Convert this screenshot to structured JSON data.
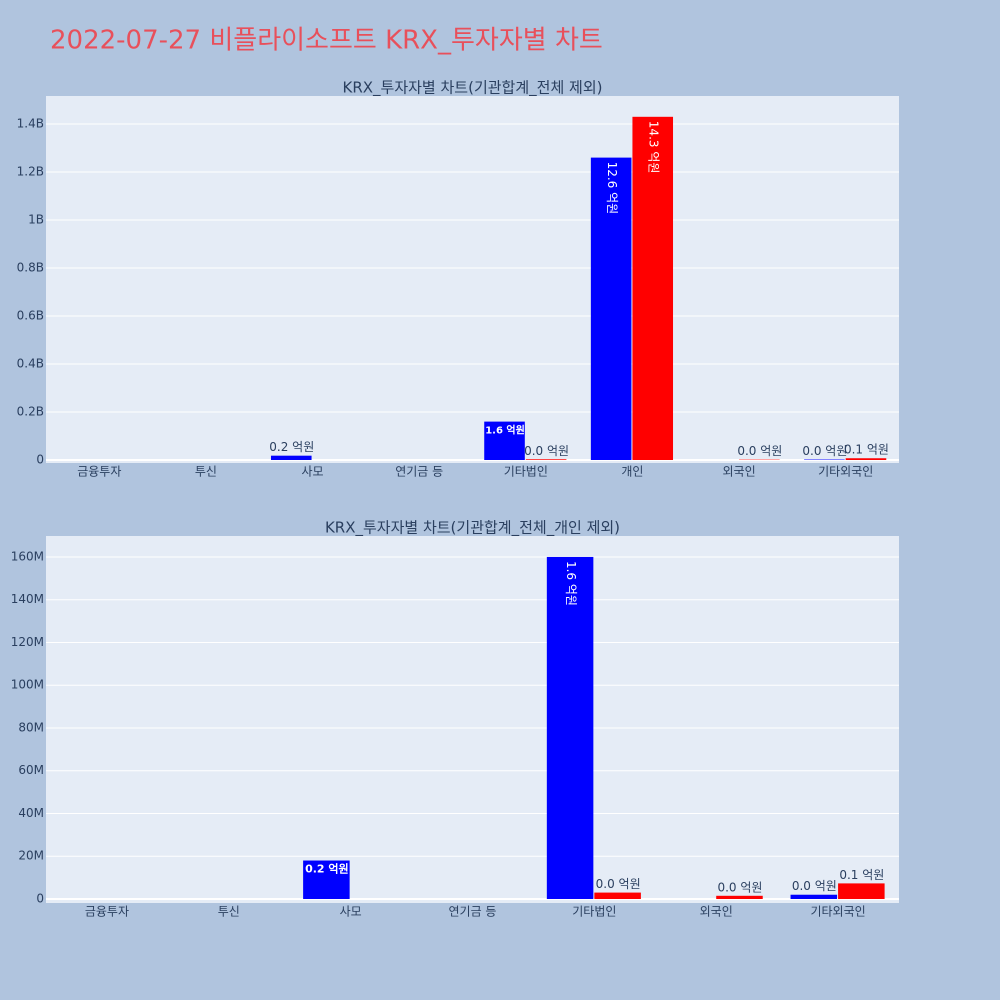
{
  "title": "2022-07-27 비플라이소프트 KRX_투자자별 차트",
  "chart_data": [
    {
      "type": "bar",
      "title": "KRX_투자자별 차트(기관합계_전체 제외)",
      "categories": [
        "금융투자",
        "투신",
        "사모",
        "연기금 등",
        "기타법인",
        "개인",
        "외국인",
        "기타외국인"
      ],
      "series": [
        {
          "color": "#0000ff",
          "values": [
            null,
            null,
            18000000,
            null,
            160000000,
            1260000000,
            null,
            2000000
          ],
          "value_labels": [
            null,
            null,
            "0.2 억원",
            null,
            "1.6 억원",
            "12.6 억원",
            null,
            "0.0 억원"
          ]
        },
        {
          "color": "#ff0000",
          "values": [
            null,
            null,
            null,
            null,
            3000000,
            1430000000,
            1500000,
            7300000
          ],
          "value_labels": [
            null,
            null,
            null,
            null,
            "0.0 억원",
            "14.3 억원",
            "0.0 억원",
            "0.1 억원"
          ]
        }
      ],
      "ylim": [
        -12500000,
        1516700000
      ],
      "yticks": [
        0,
        {
          "value": 200000000,
          "label": "0.2B"
        },
        {
          "value": 400000000,
          "label": "0.4B"
        },
        {
          "value": 600000000,
          "label": "0.6B"
        },
        {
          "value": 800000000,
          "label": "0.8B"
        },
        {
          "value": 1000000000,
          "label": "1B"
        },
        {
          "value": 1200000000,
          "label": "1.2B"
        },
        {
          "value": 1400000000,
          "label": "1.4B"
        }
      ],
      "grid": true
    },
    {
      "type": "bar",
      "title": "KRX_투자자별 차트(기관합계_전체_개인 제외)",
      "categories": [
        "금융투자",
        "투신",
        "사모",
        "연기금 등",
        "기타법인",
        "외국인",
        "기타외국인"
      ],
      "series": [
        {
          "color": "#0000ff",
          "values": [
            null,
            null,
            18000000,
            null,
            160000000,
            null,
            2000000
          ],
          "value_labels": [
            null,
            null,
            "0.2 억원",
            null,
            "1.6 억원",
            null,
            "0.0 억원"
          ]
        },
        {
          "color": "#ff0000",
          "values": [
            null,
            null,
            null,
            null,
            3000000,
            1500000,
            7300000
          ],
          "value_labels": [
            null,
            null,
            null,
            null,
            "0.0 억원",
            "0.0 억원",
            "0.1 억원"
          ]
        }
      ],
      "ylim": [
        -1870000,
        169800000
      ],
      "yticks": [
        0,
        {
          "value": 20000000,
          "label": "20M"
        },
        {
          "value": 40000000,
          "label": "40M"
        },
        {
          "value": 60000000,
          "label": "60M"
        },
        {
          "value": 80000000,
          "label": "80M"
        },
        {
          "value": 100000000,
          "label": "100M"
        },
        {
          "value": 120000000,
          "label": "120M"
        },
        {
          "value": 140000000,
          "label": "140M"
        },
        {
          "value": 160000000,
          "label": "160M"
        }
      ],
      "grid": true
    }
  ]
}
